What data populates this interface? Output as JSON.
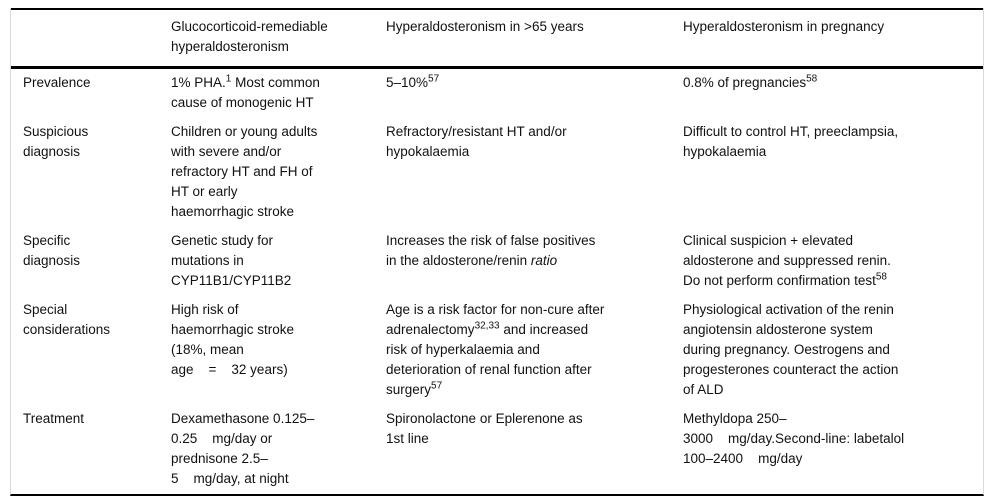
{
  "table": {
    "columns": [
      "",
      "Glucocorticoid-remediable\nhyperaldosteronism",
      "Hyperaldosteronism in >65 years",
      "Hyperaldosteronism in pregnancy"
    ],
    "rows": [
      {
        "label": "Prevalence",
        "cells": [
          [
            {
              "t": "1% PHA."
            },
            {
              "t": "1",
              "sup": true
            },
            {
              "t": " Most common\ncause of monogenic HT"
            }
          ],
          [
            {
              "t": "5–10%"
            },
            {
              "t": "57",
              "sup": true
            }
          ],
          [
            {
              "t": "0.8% of pregnancies"
            },
            {
              "t": "58",
              "sup": true
            }
          ]
        ]
      },
      {
        "label": "Suspicious\ndiagnosis",
        "cells": [
          [
            {
              "t": "Children or young adults\nwith severe and/or\nrefractory HT and FH of\nHT or early\nhaemorrhagic stroke"
            }
          ],
          [
            {
              "t": "Refractory/resistant HT and/or\nhypokalaemia"
            }
          ],
          [
            {
              "t": "Difficult to control HT, preeclampsia,\nhypokalaemia"
            }
          ]
        ]
      },
      {
        "label": "Specific\ndiagnosis",
        "cells": [
          [
            {
              "t": "Genetic study for\nmutations in\nCYP11B1/CYP11B2"
            }
          ],
          [
            {
              "t": "Increases the risk of false positives\nin the aldosterone/renin "
            },
            {
              "t": "ratio",
              "i": true
            }
          ],
          [
            {
              "t": "Clinical suspicion + elevated\naldosterone and suppressed renin.\nDo not perform confirmation test"
            },
            {
              "t": "58",
              "sup": true
            }
          ]
        ]
      },
      {
        "label": "Special\nconsiderations",
        "cells": [
          [
            {
              "t": "High risk of\nhaemorrhagic stroke\n(18%, mean\nage    =    32 years)"
            }
          ],
          [
            {
              "t": "Age is a risk factor for non-cure after\nadrenalectomy"
            },
            {
              "t": "32,33",
              "sup": true
            },
            {
              "t": " and increased\nrisk of hyperkalaemia and\ndeterioration of renal function after\nsurgery"
            },
            {
              "t": "57",
              "sup": true
            }
          ],
          [
            {
              "t": "Physiological activation of the renin\nangiotensin aldosterone system\nduring pregnancy. Oestrogens and\nprogesterones counteract the action\nof ALD"
            }
          ]
        ]
      },
      {
        "label": "Treatment",
        "cells": [
          [
            {
              "t": "Dexamethasone 0.125–\n0.25    mg/day or\nprednisone 2.5–\n5    mg/day, at night"
            }
          ],
          [
            {
              "t": "Spironolactone or Eplerenone as\n1st line"
            }
          ],
          [
            {
              "t": "Methyldopa 250–\n3000    mg/day.Second-line: labetalol\n100–2400    mg/day"
            }
          ]
        ]
      }
    ],
    "colors": {
      "rule": "#000000",
      "side_edge": "#d9d9d9",
      "text": "#111111",
      "background": "#ffffff"
    }
  }
}
